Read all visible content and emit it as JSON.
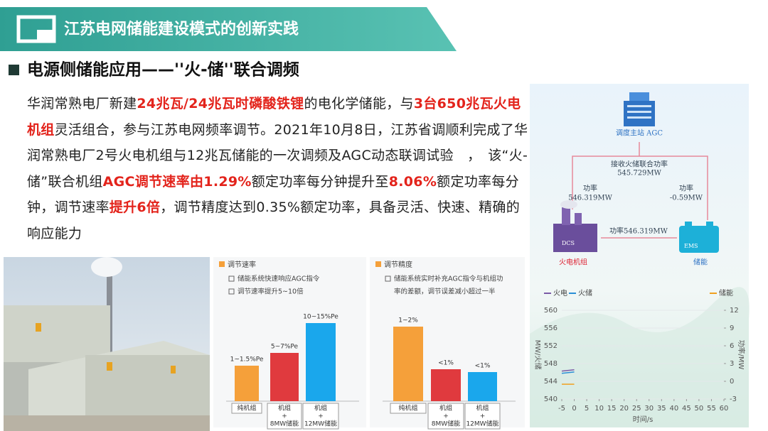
{
  "header": {
    "title": "江苏电网储能建设模式的创新实践"
  },
  "section": {
    "heading": "电源侧储能应用——''火-储''联合调频"
  },
  "paragraph": {
    "runs": [
      {
        "text": "华润常熟电厂新建",
        "emphasis": false
      },
      {
        "text": "24兆瓦/24兆瓦时磷酸铁锂",
        "emphasis": true
      },
      {
        "text": "的电化学储能，与",
        "emphasis": false
      },
      {
        "text": "3台650兆瓦火电机组",
        "emphasis": true
      },
      {
        "text": "灵活组合，参与江苏电网频率调节。2021年10月8日，江苏省调顺利完成了华润常熟电厂2号火电机组与12兆瓦储能的一次调频及AGC动态联调试验　，　该“火-储”联合机组",
        "emphasis": false
      },
      {
        "text": "AGC调节速率由1.29%",
        "emphasis": true
      },
      {
        "text": "额定功率每分钟提升至",
        "emphasis": false
      },
      {
        "text": "8.06%",
        "emphasis": true
      },
      {
        "text": "额定功率每分钟，调节速率",
        "emphasis": false
      },
      {
        "text": "提升6倍",
        "emphasis": true
      },
      {
        "text": "，调节精度达到0.35%额定功率，具备灵活、快速、精确的响应能力",
        "emphasis": false
      }
    ]
  },
  "panels": [
    {
      "heading": "调节速率",
      "items": [
        "储能系统快速响应AGC指令",
        "调节速率提升5~10倍"
      ],
      "bar_labels": [
        "1~1.5%Pe",
        "5~7%Pe",
        "10~15%Pe"
      ],
      "categories": [
        [
          "纯机组"
        ],
        [
          "机组",
          "+",
          "8MW储能"
        ],
        [
          "机组",
          "+",
          "12MW储能"
        ]
      ]
    },
    {
      "heading": "调节精度",
      "items": [
        "储能系统实时补充AGC指令与机组功",
        "率的差额，调节误差减小超过一半"
      ],
      "bar_labels": [
        "1~2%",
        "<1%",
        "<1%"
      ],
      "categories": [
        [
          "纯机组"
        ],
        [
          "机组",
          "+",
          "8MW储能"
        ],
        [
          "机组",
          "+",
          "12MW储能"
        ]
      ]
    }
  ],
  "diagram": {
    "station": "调度主站 AGC",
    "receive_label": "接收火储联合功率",
    "receive_value": "545.729MW",
    "left_label": "功率",
    "left_value": "546.319MW",
    "right_label": "功率",
    "right_value": "-0.59MW",
    "mid_label": "功率546.319MW",
    "plant": "火电机组",
    "plant_tag": "DCS",
    "storage": "储能",
    "storage_tag": "EMS"
  },
  "chart_data": {
    "type": "line",
    "ylabel": "MW/火储",
    "y2label": "功率/MW",
    "xlabel": "时间/s",
    "x": [
      -5,
      0
    ],
    "series": [
      {
        "name": "火电",
        "color": "#7b5aa6",
        "values": [
          546.3,
          546.6
        ]
      },
      {
        "name": "火储",
        "color": "#2a8fd6",
        "values": [
          545.8,
          546.1
        ]
      },
      {
        "name": "储能",
        "color": "#f0a020",
        "values": [
          -0.5,
          -0.5
        ],
        "axis": "y2"
      }
    ],
    "xlim": [
      -5,
      60
    ],
    "xticks": [
      -5,
      0,
      5,
      10,
      15,
      20,
      25,
      30,
      35,
      40,
      45,
      50,
      55,
      60
    ],
    "ylim": [
      540,
      560
    ],
    "yticks": [
      540,
      544,
      548,
      552,
      556,
      560
    ],
    "y2lim": [
      -3,
      12
    ],
    "y2ticks": [
      -3,
      0,
      3,
      6,
      9,
      12
    ]
  }
}
